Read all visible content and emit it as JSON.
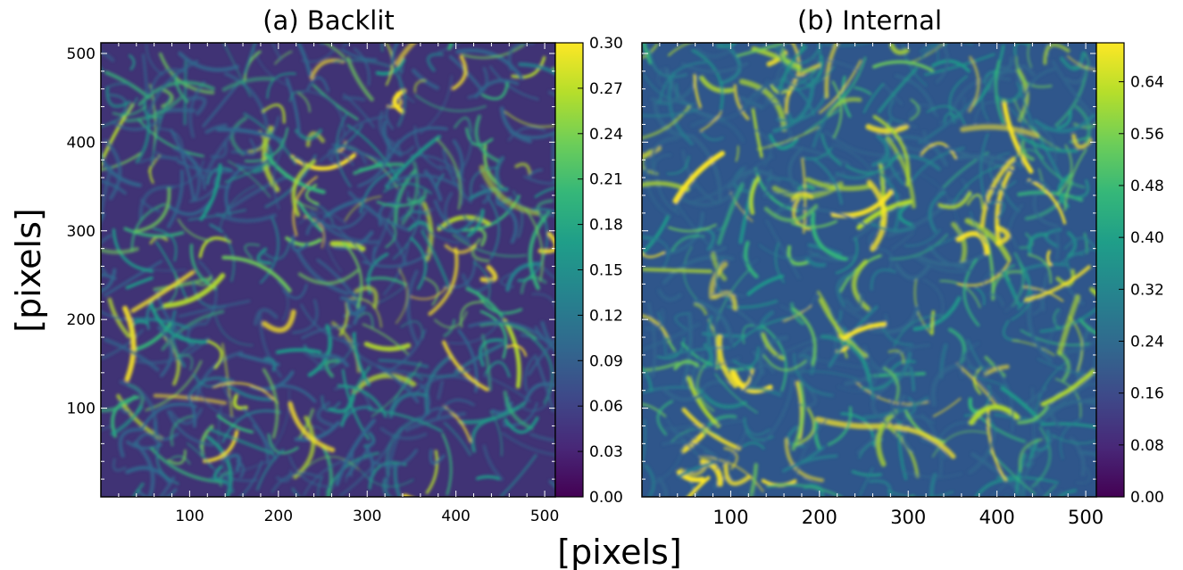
{
  "chart_data": [
    {
      "type": "heatmap",
      "title": "(a) Backlit",
      "xlim": [
        0,
        512
      ],
      "ylim": [
        0,
        512
      ],
      "x_ticks": [
        "100",
        "200",
        "300",
        "400",
        "500"
      ],
      "y_ticks": [
        "100",
        "200",
        "300",
        "400",
        "500"
      ],
      "colormap": "viridis",
      "colorbar": {
        "range": [
          0.0,
          0.3
        ],
        "ticks": [
          "0.00",
          "0.03",
          "0.06",
          "0.09",
          "0.12",
          "0.15",
          "0.18",
          "0.21",
          "0.24",
          "0.27",
          "0.30"
        ]
      }
    },
    {
      "type": "heatmap",
      "title": "(b) Internal",
      "xlim": [
        0,
        512
      ],
      "ylim": [
        0,
        512
      ],
      "x_ticks": [
        "100",
        "200",
        "300",
        "400",
        "500"
      ],
      "colormap": "viridis",
      "colorbar": {
        "range": [
          0.0,
          0.7
        ],
        "ticks": [
          "0.00",
          "0.08",
          "0.16",
          "0.24",
          "0.32",
          "0.40",
          "0.48",
          "0.56",
          "0.64"
        ]
      }
    }
  ],
  "shared_labels": {
    "xlabel": "[pixels]",
    "ylabel": "[pixels]"
  },
  "colors": {
    "viridis_stops": [
      "#440154",
      "#482878",
      "#3e4989",
      "#31688e",
      "#26828e",
      "#1f9e89",
      "#35b779",
      "#6ece58",
      "#b5de2b",
      "#fde725"
    ]
  }
}
